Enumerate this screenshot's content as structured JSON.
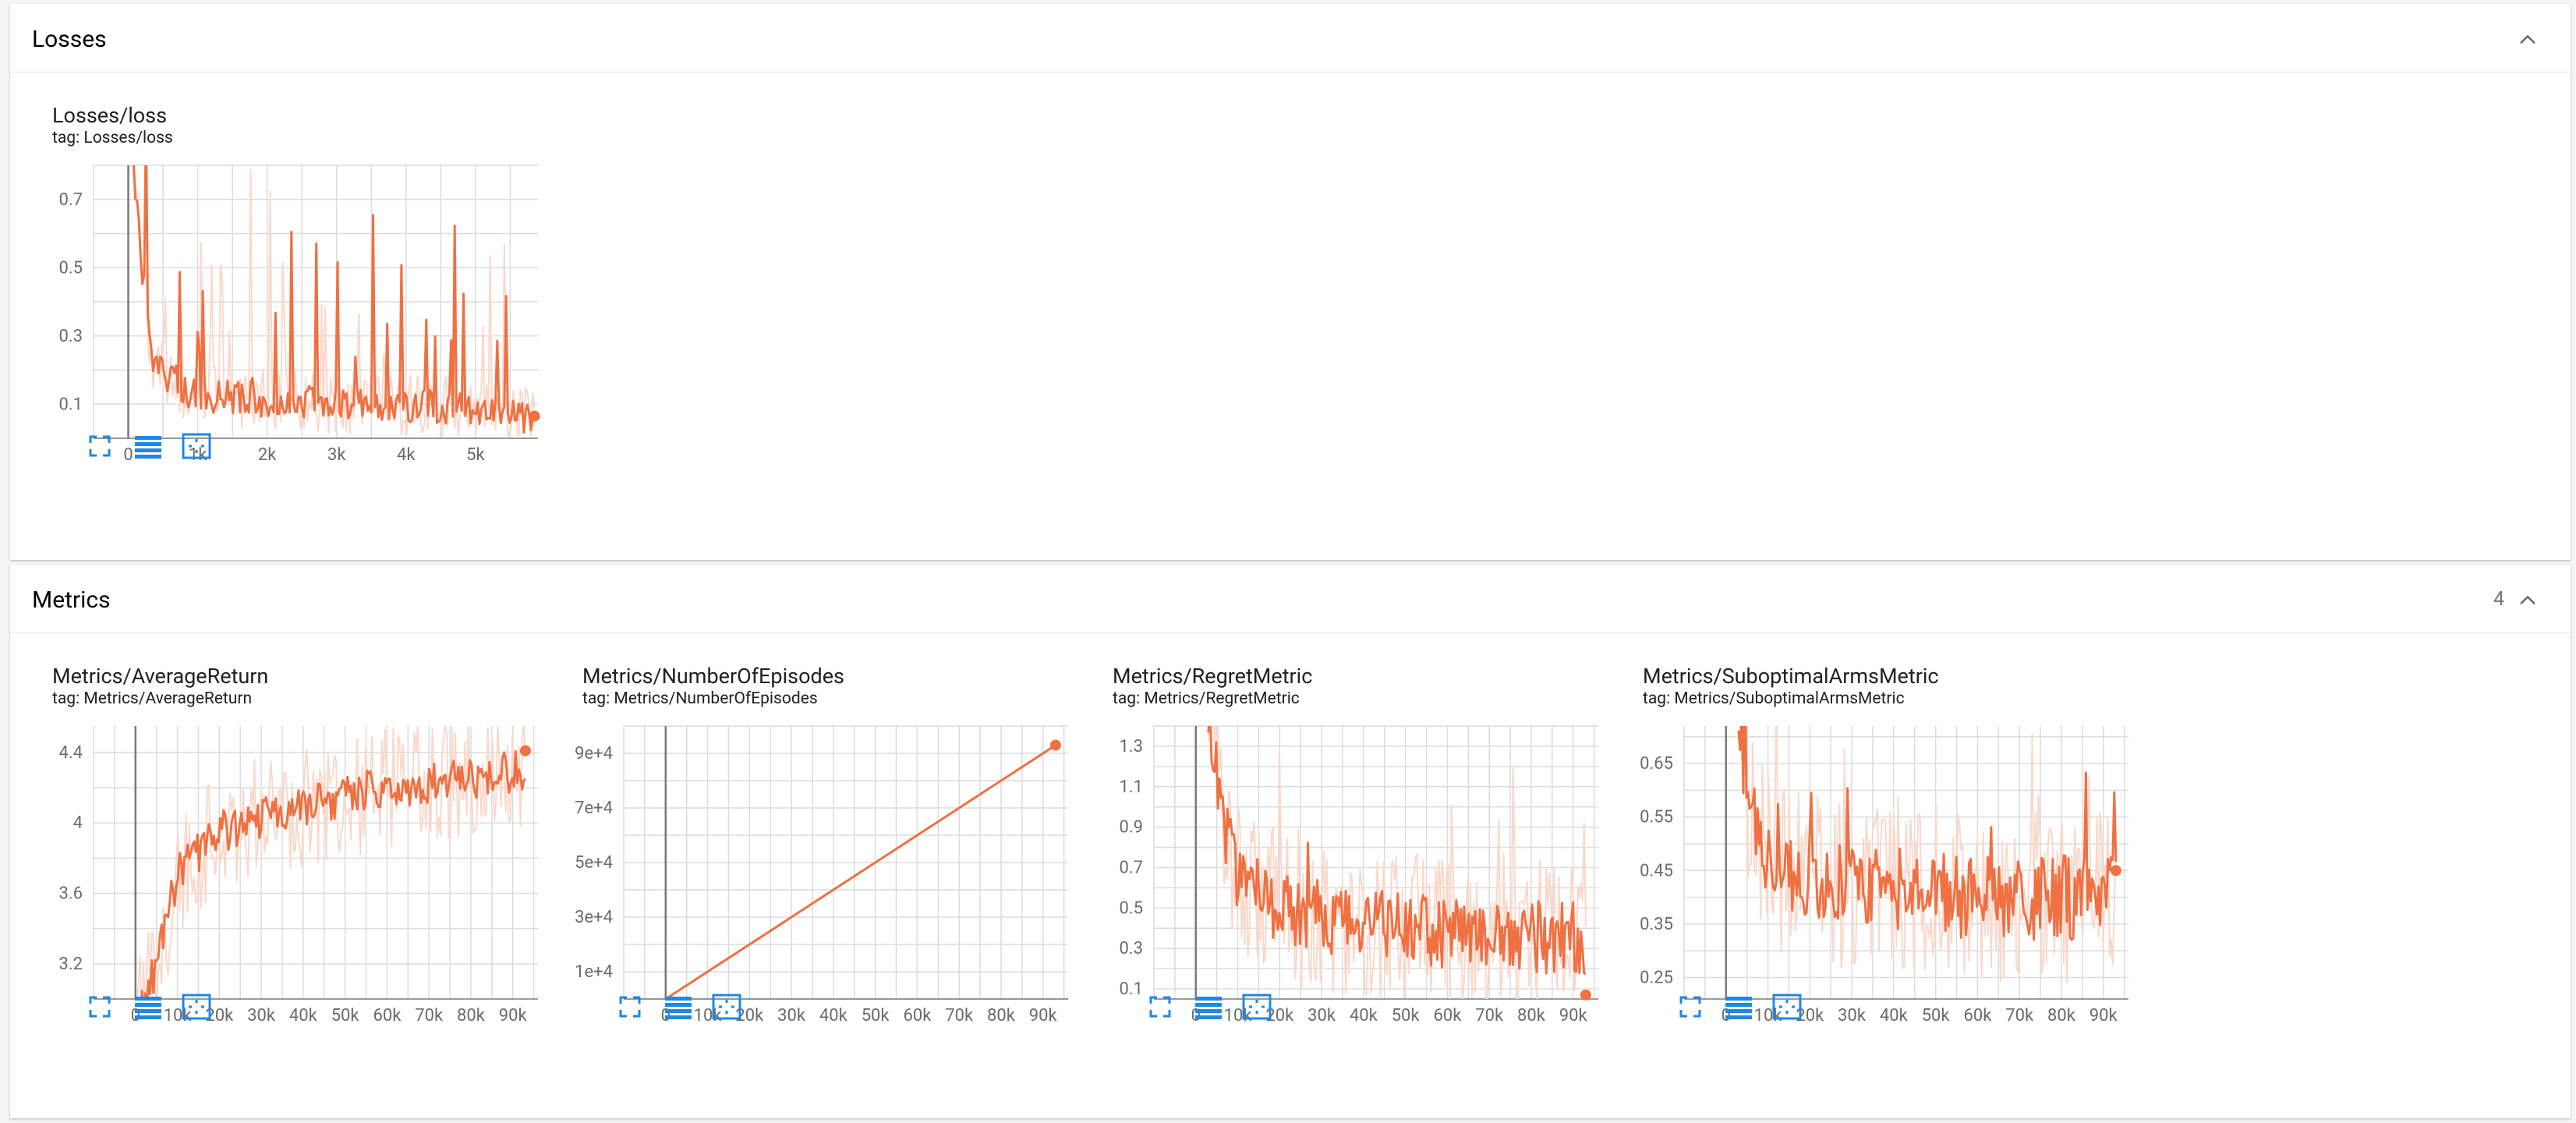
{
  "sections": [
    {
      "title": "Losses",
      "count": "",
      "cards": [
        {
          "title": "Losses/loss",
          "tag": "tag: Losses/loss",
          "chart_data": {
            "type": "line",
            "xlim": [
              -500,
              5900
            ],
            "ylim": [
              0.0,
              0.8
            ],
            "xticks": [
              0,
              1000,
              2000,
              3000,
              4000,
              5000
            ],
            "xtick_labels": [
              "0",
              "1k",
              "2k",
              "3k",
              "4k",
              "5k"
            ],
            "yticks": [
              0.1,
              0.3,
              0.5,
              0.7
            ],
            "ytick_labels": [
              "0.1",
              "0.3",
              "0.5",
              "0.7"
            ],
            "x_start": 0,
            "x_end": 5850,
            "num_points": 230,
            "series": [
              {
                "name": "smoothed",
                "style": "dark",
                "anchors": [
                  [
                    0,
                    0.95
                  ],
                  [
                    150,
                    0.6
                  ],
                  [
                    350,
                    0.22
                  ],
                  [
                    900,
                    0.13
                  ],
                  [
                    2000,
                    0.11
                  ],
                  [
                    3500,
                    0.1
                  ],
                  [
                    5000,
                    0.09
                  ],
                  [
                    5850,
                    0.06
                  ]
                ],
                "noise": 0.05,
                "spike_prob": 0.08,
                "spike_amp": 0.55
              },
              {
                "name": "raw",
                "style": "light",
                "anchors": [
                  [
                    0,
                    0.95
                  ],
                  [
                    150,
                    0.6
                  ],
                  [
                    350,
                    0.22
                  ],
                  [
                    900,
                    0.13
                  ],
                  [
                    2000,
                    0.11
                  ],
                  [
                    3500,
                    0.1
                  ],
                  [
                    5000,
                    0.09
                  ],
                  [
                    5850,
                    0.06
                  ]
                ],
                "noise": 0.09,
                "spike_prob": 0.14,
                "spike_amp": 0.7
              }
            ],
            "last_value": 0.065
          }
        }
      ]
    },
    {
      "title": "Metrics",
      "count": "4",
      "cards": [
        {
          "title": "Metrics/AverageReturn",
          "tag": "tag: Metrics/AverageReturn",
          "chart_data": {
            "type": "line",
            "xlim": [
              -10000,
              96000
            ],
            "ylim": [
              3.0,
              4.55
            ],
            "xticks": [
              0,
              10000,
              20000,
              30000,
              40000,
              50000,
              60000,
              70000,
              80000,
              90000
            ],
            "xtick_labels": [
              "0",
              "10k",
              "20k",
              "30k",
              "40k",
              "50k",
              "60k",
              "70k",
              "80k",
              "90k"
            ],
            "yticks": [
              3.2,
              3.6,
              4.0,
              4.4
            ],
            "ytick_labels": [
              "3.2",
              "3.6",
              "4",
              "4.4"
            ],
            "x_start": 0,
            "x_end": 93000,
            "num_points": 240,
            "series": [
              {
                "name": "smoothed",
                "style": "dark",
                "anchors": [
                  [
                    0,
                    2.8
                  ],
                  [
                    5000,
                    3.2
                  ],
                  [
                    10000,
                    3.7
                  ],
                  [
                    20000,
                    3.95
                  ],
                  [
                    40000,
                    4.1
                  ],
                  [
                    60000,
                    4.2
                  ],
                  [
                    80000,
                    4.25
                  ],
                  [
                    93000,
                    4.3
                  ]
                ],
                "noise": 0.12,
                "spike_prob": 0.0,
                "spike_amp": 0.0
              },
              {
                "name": "raw",
                "style": "light",
                "anchors": [
                  [
                    0,
                    2.8
                  ],
                  [
                    5000,
                    3.2
                  ],
                  [
                    10000,
                    3.7
                  ],
                  [
                    20000,
                    3.95
                  ],
                  [
                    40000,
                    4.1
                  ],
                  [
                    60000,
                    4.2
                  ],
                  [
                    80000,
                    4.25
                  ],
                  [
                    93000,
                    4.3
                  ]
                ],
                "noise": 0.35,
                "spike_prob": 0.0,
                "spike_amp": 0.0
              }
            ],
            "last_value": 4.41
          }
        },
        {
          "title": "Metrics/NumberOfEpisodes",
          "tag": "tag: Metrics/NumberOfEpisodes",
          "chart_data": {
            "type": "line",
            "xlim": [
              -10000,
              96000
            ],
            "ylim": [
              0,
              100000
            ],
            "xticks": [
              0,
              10000,
              20000,
              30000,
              40000,
              50000,
              60000,
              70000,
              80000,
              90000
            ],
            "xtick_labels": [
              "0",
              "10k",
              "20k",
              "30k",
              "40k",
              "50k",
              "60k",
              "70k",
              "80k",
              "90k"
            ],
            "yticks": [
              10000,
              30000,
              50000,
              70000,
              90000
            ],
            "ytick_labels": [
              "1e+4",
              "3e+4",
              "5e+4",
              "7e+4",
              "9e+4"
            ],
            "x_start": 0,
            "x_end": 93000,
            "num_points": 2,
            "series": [
              {
                "name": "smoothed",
                "style": "dark",
                "anchors": [
                  [
                    0,
                    0
                  ],
                  [
                    93000,
                    93000
                  ]
                ],
                "noise": 0.0,
                "spike_prob": 0.0,
                "spike_amp": 0.0
              }
            ],
            "last_value": 93000
          }
        },
        {
          "title": "Metrics/RegretMetric",
          "tag": "tag: Metrics/RegretMetric",
          "chart_data": {
            "type": "line",
            "xlim": [
              -10000,
              96000
            ],
            "ylim": [
              0.05,
              1.4
            ],
            "xticks": [
              0,
              10000,
              20000,
              30000,
              40000,
              50000,
              60000,
              70000,
              80000,
              90000
            ],
            "xtick_labels": [
              "0",
              "10k",
              "20k",
              "30k",
              "40k",
              "50k",
              "60k",
              "70k",
              "80k",
              "90k"
            ],
            "yticks": [
              0.1,
              0.3,
              0.5,
              0.7,
              0.9,
              1.1,
              1.3
            ],
            "ytick_labels": [
              "0.1",
              "0.3",
              "0.5",
              "0.7",
              "0.9",
              "1.1",
              "1.3"
            ],
            "x_start": 3000,
            "x_end": 93000,
            "num_points": 240,
            "series": [
              {
                "name": "smoothed",
                "style": "dark",
                "anchors": [
                  [
                    3000,
                    1.4
                  ],
                  [
                    6000,
                    1.0
                  ],
                  [
                    10000,
                    0.65
                  ],
                  [
                    20000,
                    0.5
                  ],
                  [
                    40000,
                    0.42
                  ],
                  [
                    60000,
                    0.38
                  ],
                  [
                    80000,
                    0.36
                  ],
                  [
                    93000,
                    0.35
                  ]
                ],
                "noise": 0.18,
                "spike_prob": 0.04,
                "spike_amp": 0.35
              },
              {
                "name": "raw",
                "style": "light",
                "anchors": [
                  [
                    3000,
                    1.4
                  ],
                  [
                    6000,
                    1.0
                  ],
                  [
                    10000,
                    0.65
                  ],
                  [
                    20000,
                    0.5
                  ],
                  [
                    40000,
                    0.42
                  ],
                  [
                    60000,
                    0.38
                  ],
                  [
                    80000,
                    0.36
                  ],
                  [
                    93000,
                    0.35
                  ]
                ],
                "noise": 0.38,
                "spike_prob": 0.1,
                "spike_amp": 0.7
              }
            ],
            "last_value": 0.07
          }
        },
        {
          "title": "Metrics/SuboptimalArmsMetric",
          "tag": "tag: Metrics/SuboptimalArmsMetric",
          "chart_data": {
            "type": "line",
            "xlim": [
              -10000,
              96000
            ],
            "ylim": [
              0.21,
              0.72
            ],
            "xticks": [
              0,
              10000,
              20000,
              30000,
              40000,
              50000,
              60000,
              70000,
              80000,
              90000
            ],
            "xtick_labels": [
              "0",
              "10k",
              "20k",
              "30k",
              "40k",
              "50k",
              "60k",
              "70k",
              "80k",
              "90k"
            ],
            "yticks": [
              0.25,
              0.35,
              0.45,
              0.55,
              0.65
            ],
            "ytick_labels": [
              "0.25",
              "0.35",
              "0.45",
              "0.55",
              "0.65"
            ],
            "x_start": 3000,
            "x_end": 93000,
            "num_points": 240,
            "series": [
              {
                "name": "smoothed",
                "style": "dark",
                "anchors": [
                  [
                    3000,
                    0.72
                  ],
                  [
                    6000,
                    0.55
                  ],
                  [
                    10000,
                    0.46
                  ],
                  [
                    30000,
                    0.42
                  ],
                  [
                    60000,
                    0.4
                  ],
                  [
                    93000,
                    0.4
                  ]
                ],
                "noise": 0.08,
                "spike_prob": 0.04,
                "spike_amp": 0.18
              },
              {
                "name": "raw",
                "style": "light",
                "anchors": [
                  [
                    3000,
                    0.72
                  ],
                  [
                    6000,
                    0.55
                  ],
                  [
                    10000,
                    0.46
                  ],
                  [
                    30000,
                    0.42
                  ],
                  [
                    60000,
                    0.4
                  ],
                  [
                    93000,
                    0.4
                  ]
                ],
                "noise": 0.16,
                "spike_prob": 0.1,
                "spike_amp": 0.3
              }
            ],
            "last_value": 0.45
          }
        }
      ]
    }
  ],
  "colors": {
    "line": "#f07042",
    "line_light": "#fad8ca",
    "grid": "#dcdcdc",
    "axis": "#7a7a7a",
    "tool_icon": "#1e88e5"
  },
  "icons": {
    "fullscreen": "fullscreen-icon",
    "data_table": "data-table-icon",
    "fit_domain": "fit-domain-icon",
    "collapse": "chevron-up-icon"
  }
}
